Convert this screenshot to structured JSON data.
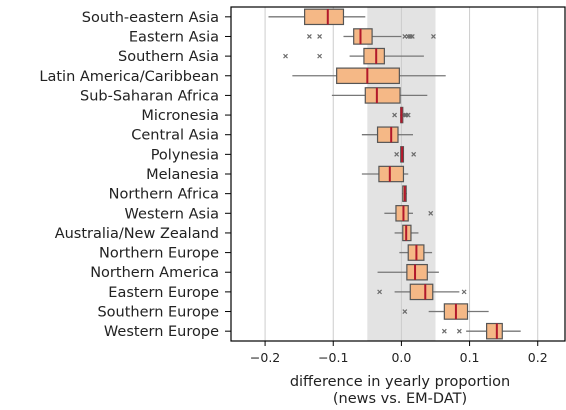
{
  "chart_data": {
    "type": "boxplot",
    "orientation": "horizontal",
    "title": "",
    "xlabel": "difference in yearly proportion",
    "xlabel_line2": "(news vs. EM-DAT)",
    "ylabel": "",
    "xlim": [
      -0.25,
      0.24
    ],
    "xticks": [
      -0.2,
      -0.1,
      0.0,
      0.1,
      0.2
    ],
    "xtick_labels": [
      "−0.2",
      "−0.1",
      "0.0",
      "0.1",
      "0.2"
    ],
    "grid": "vertical",
    "shaded_band": [
      -0.05,
      0.05
    ],
    "colors": {
      "box_fill": "#f5b886",
      "box_edge": "#555555",
      "median": "#b2182b",
      "whisker": "#777777",
      "band": "#e3e3e3",
      "grid": "#cccccc",
      "outlier": "#6b6b6b"
    },
    "categories": [
      "South-eastern Asia",
      "Eastern Asia",
      "Southern Asia",
      "Latin America/Caribbean",
      "Sub-Saharan Africa",
      "Micronesia",
      "Central Asia",
      "Polynesia",
      "Melanesia",
      "Northern Africa",
      "Western Asia",
      "Australia/New Zealand",
      "Northern Europe",
      "Northern America",
      "Eastern Europe",
      "Southern Europe",
      "Western Europe"
    ],
    "boxes": [
      {
        "whislo": -0.195,
        "q1": -0.142,
        "med": -0.108,
        "q3": -0.085,
        "whishi": -0.053,
        "fliers": []
      },
      {
        "whislo": -0.085,
        "q1": -0.07,
        "med": -0.06,
        "q3": -0.043,
        "whishi": 0.0,
        "fliers": [
          -0.135,
          -0.12,
          0.005,
          0.01,
          0.013,
          0.016,
          0.047
        ]
      },
      {
        "whislo": -0.076,
        "q1": -0.055,
        "med": -0.037,
        "q3": -0.025,
        "whishi": 0.033,
        "fliers": [
          -0.17,
          -0.12
        ]
      },
      {
        "whislo": -0.16,
        "q1": -0.095,
        "med": -0.05,
        "q3": -0.003,
        "whishi": 0.065,
        "fliers": []
      },
      {
        "whislo": -0.102,
        "q1": -0.053,
        "med": -0.036,
        "q3": -0.002,
        "whishi": 0.038,
        "fliers": []
      },
      {
        "whislo": -0.002,
        "q1": -0.001,
        "med": 0.0,
        "q3": 0.002,
        "whishi": 0.004,
        "fliers": [
          -0.01,
          0.005,
          0.007,
          0.01
        ]
      },
      {
        "whislo": -0.058,
        "q1": -0.035,
        "med": -0.015,
        "q3": -0.005,
        "whishi": 0.017,
        "fliers": []
      },
      {
        "whislo": -0.001,
        "q1": -0.001,
        "med": 0.001,
        "q3": 0.003,
        "whishi": 0.003,
        "fliers": [
          -0.007,
          0.018
        ]
      },
      {
        "whislo": -0.058,
        "q1": -0.033,
        "med": -0.017,
        "q3": 0.003,
        "whishi": 0.01,
        "fliers": []
      },
      {
        "whislo": 0.001,
        "q1": 0.002,
        "med": 0.005,
        "q3": 0.007,
        "whishi": 0.008,
        "fliers": []
      },
      {
        "whislo": -0.025,
        "q1": -0.008,
        "med": 0.003,
        "q3": 0.01,
        "whishi": 0.017,
        "fliers": [
          0.043
        ]
      },
      {
        "whislo": -0.01,
        "q1": 0.002,
        "med": 0.007,
        "q3": 0.014,
        "whishi": 0.025,
        "fliers": []
      },
      {
        "whislo": -0.003,
        "q1": 0.01,
        "med": 0.022,
        "q3": 0.033,
        "whishi": 0.045,
        "fliers": []
      },
      {
        "whislo": -0.035,
        "q1": 0.008,
        "med": 0.02,
        "q3": 0.038,
        "whishi": 0.055,
        "fliers": []
      },
      {
        "whislo": -0.01,
        "q1": 0.013,
        "med": 0.035,
        "q3": 0.046,
        "whishi": 0.085,
        "fliers": [
          -0.032,
          0.092
        ]
      },
      {
        "whislo": 0.04,
        "q1": 0.063,
        "med": 0.08,
        "q3": 0.097,
        "whishi": 0.128,
        "fliers": [
          0.005
        ]
      },
      {
        "whislo": 0.095,
        "q1": 0.125,
        "med": 0.14,
        "q3": 0.148,
        "whishi": 0.175,
        "fliers": [
          0.063,
          0.085
        ]
      }
    ]
  }
}
